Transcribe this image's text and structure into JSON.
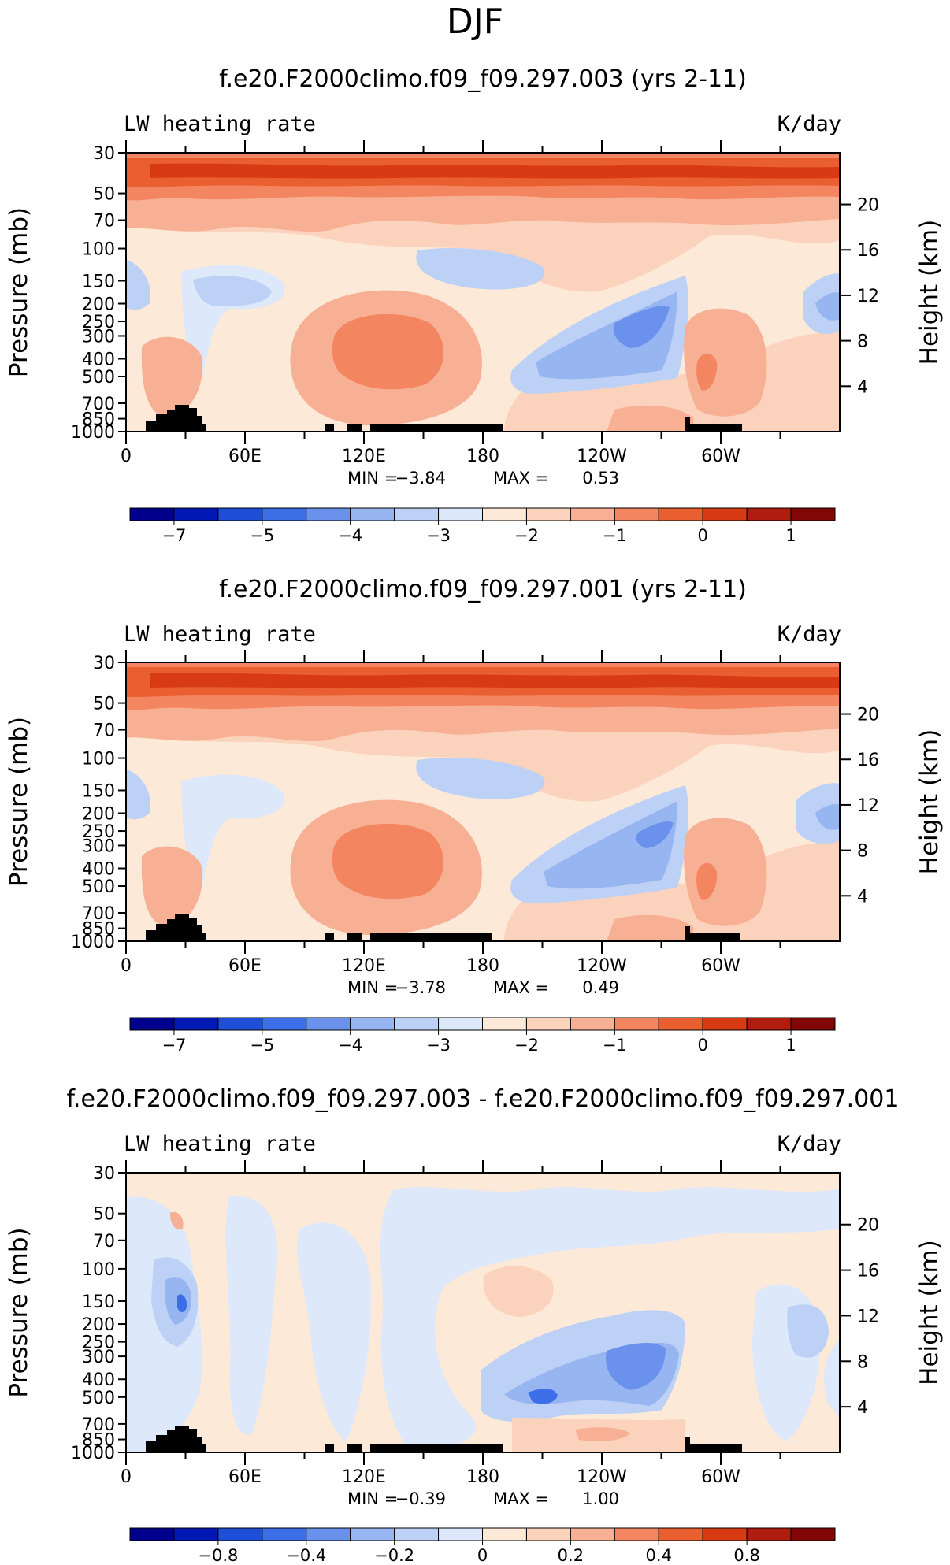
{
  "figure_title": "DJF",
  "chart_data": [
    {
      "type": "heatmap",
      "title": "f.e20.F2000climo.f09_f09.297.003 (yrs 2-11)",
      "left_label": "LW heating rate",
      "right_label": "K/day",
      "ylabel": "Pressure (mb)",
      "y2label": "Height (km)",
      "pressure_ticks": [
        "1000",
        "850",
        "700",
        "500",
        "400",
        "300",
        "250",
        "200",
        "150",
        "100",
        "70",
        "50",
        "30"
      ],
      "height_ticks": [
        "4",
        "8",
        "12",
        "16",
        "20"
      ],
      "x_ticks": [
        "0",
        "60E",
        "120E",
        "180",
        "120W",
        "60W"
      ],
      "min_label": "MIN =",
      "min_value": "−3.84",
      "max_label": "MAX =",
      "max_value": "0.53",
      "colorbar_labels": [
        "−7",
        "−5",
        "−4",
        "−3",
        "−2",
        "−1",
        "0",
        "1"
      ]
    },
    {
      "type": "heatmap",
      "title": "f.e20.F2000climo.f09_f09.297.001 (yrs 2-11)",
      "left_label": "LW heating rate",
      "right_label": "K/day",
      "ylabel": "Pressure (mb)",
      "y2label": "Height (km)",
      "pressure_ticks": [
        "1000",
        "850",
        "700",
        "500",
        "400",
        "300",
        "250",
        "200",
        "150",
        "100",
        "70",
        "50",
        "30"
      ],
      "height_ticks": [
        "4",
        "8",
        "12",
        "16",
        "20"
      ],
      "x_ticks": [
        "0",
        "60E",
        "120E",
        "180",
        "120W",
        "60W"
      ],
      "min_label": "MIN =",
      "min_value": "−3.78",
      "max_label": "MAX =",
      "max_value": "0.49",
      "colorbar_labels": [
        "−7",
        "−5",
        "−4",
        "−3",
        "−2",
        "−1",
        "0",
        "1"
      ]
    },
    {
      "type": "heatmap",
      "title": "f.e20.F2000climo.f09_f09.297.003 - f.e20.F2000climo.f09_f09.297.001",
      "left_label": "LW heating rate",
      "right_label": "K/day",
      "ylabel": "Pressure (mb)",
      "y2label": "Height (km)",
      "pressure_ticks": [
        "1000",
        "850",
        "700",
        "500",
        "400",
        "300",
        "250",
        "200",
        "150",
        "100",
        "70",
        "50",
        "30"
      ],
      "height_ticks": [
        "4",
        "8",
        "12",
        "16",
        "20"
      ],
      "x_ticks": [
        "0",
        "60E",
        "120E",
        "180",
        "120W",
        "60W"
      ],
      "min_label": "MIN =",
      "min_value": "−0.39",
      "max_label": "MAX =",
      "max_value": "1.00",
      "colorbar_labels": [
        "−0.8",
        "−0.4",
        "−0.2",
        "0",
        "0.2",
        "0.4",
        "0.8"
      ]
    }
  ],
  "colors": {
    "c0": "#00008c",
    "c1": "#0018b4",
    "c2": "#1f4fd8",
    "c3": "#3c6ee8",
    "c4": "#6a92ec",
    "c5": "#97b5f0",
    "c6": "#bdd1f6",
    "c7": "#dde8fa",
    "c8": "#fde9d8",
    "c9": "#fbd3bd",
    "c10": "#f8b095",
    "c11": "#f38560",
    "c12": "#ea5f30",
    "c13": "#d83b14",
    "c14": "#b01d0e",
    "c15": "#820606"
  }
}
